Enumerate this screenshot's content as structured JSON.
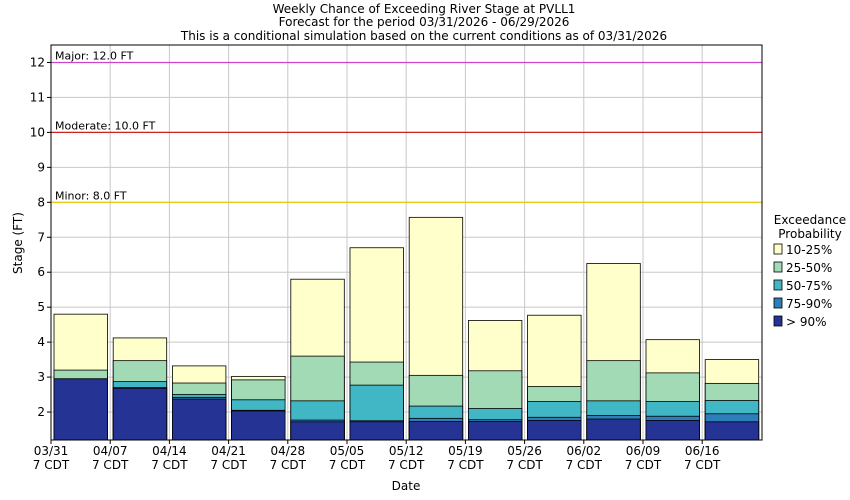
{
  "chart_data": {
    "type": "bar",
    "title_lines": [
      "Weekly Chance of Exceeding River Stage at PVLL1",
      "Forecast for the period 03/31/2026 - 06/29/2026",
      "This is a conditional simulation based on the current conditions as of 03/31/2026"
    ],
    "xlabel": "Date",
    "ylabel": "Stage (FT)",
    "ylim": [
      1.2,
      12.5
    ],
    "yticks": [
      2,
      3,
      4,
      5,
      6,
      7,
      8,
      9,
      10,
      11,
      12
    ],
    "grid": true,
    "legend_position": "right",
    "x_tick_labels": [
      {
        "date": "03/31",
        "tz": "7 CDT"
      },
      {
        "date": "04/07",
        "tz": "7 CDT"
      },
      {
        "date": "04/14",
        "tz": "7 CDT"
      },
      {
        "date": "04/21",
        "tz": "7 CDT"
      },
      {
        "date": "04/28",
        "tz": "7 CDT"
      },
      {
        "date": "05/05",
        "tz": "7 CDT"
      },
      {
        "date": "05/12",
        "tz": "7 CDT"
      },
      {
        "date": "05/19",
        "tz": "7 CDT"
      },
      {
        "date": "05/26",
        "tz": "7 CDT"
      },
      {
        "date": "06/02",
        "tz": "7 CDT"
      },
      {
        "date": "06/09",
        "tz": "7 CDT"
      },
      {
        "date": "06/16",
        "tz": "7 CDT"
      }
    ],
    "thresholds": [
      {
        "label": "Major: 12.0 FT",
        "value": 12.0,
        "color": "#cc44cc"
      },
      {
        "label": "Moderate: 10.0 FT",
        "value": 10.0,
        "color": "#cc2222"
      },
      {
        "label": "Minor: 8.0 FT",
        "value": 8.0,
        "color": "#e8c800"
      }
    ],
    "legend_title": [
      "Exceedance",
      "Probability"
    ],
    "series": [
      {
        "name": "10-25%",
        "color": "#ffffcc",
        "values": [
          4.8,
          4.12,
          3.32,
          3.02,
          5.8,
          6.7,
          7.57,
          4.62,
          4.77,
          6.25,
          4.07,
          3.5
        ]
      },
      {
        "name": "25-50%",
        "color": "#a1dab4",
        "values": [
          3.2,
          3.47,
          2.83,
          2.92,
          3.6,
          3.43,
          3.05,
          3.18,
          2.73,
          3.47,
          3.12,
          2.82
        ]
      },
      {
        "name": "50-75%",
        "color": "#41b6c4",
        "values": [
          2.95,
          2.87,
          2.5,
          2.35,
          2.32,
          2.77,
          2.17,
          2.1,
          2.3,
          2.32,
          2.3,
          2.33
        ]
      },
      {
        "name": "75-90%",
        "color": "#2c7fb8",
        "values": [
          2.95,
          2.7,
          2.42,
          2.05,
          1.77,
          1.75,
          1.82,
          1.78,
          1.85,
          1.9,
          1.88,
          1.95
        ]
      },
      {
        "name": "> 90%",
        "color": "#253494",
        "values": [
          2.95,
          2.68,
          2.37,
          2.03,
          1.72,
          1.72,
          1.73,
          1.73,
          1.76,
          1.8,
          1.76,
          1.72
        ]
      }
    ]
  }
}
